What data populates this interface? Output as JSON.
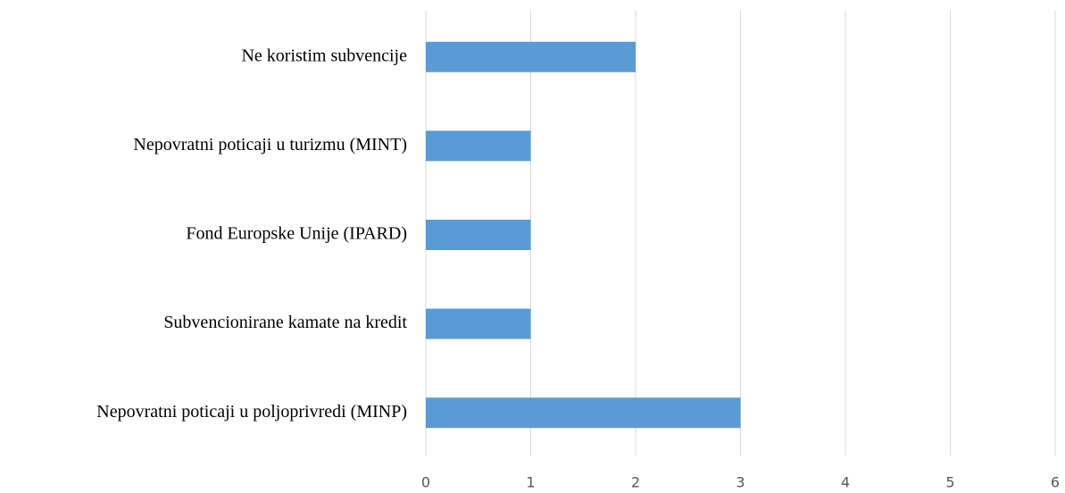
{
  "chart_data": {
    "type": "hbar",
    "categories": [
      "Ne koristim subvencije",
      "Nepovratni poticaji u turizmu (MINT)",
      "Fond Europske Unije (IPARD)",
      "Subvencionirane kamate na kredit",
      "Nepovratni poticaji u poljoprivredi (MINP)"
    ],
    "values": [
      2,
      1,
      1,
      1,
      3
    ],
    "color": "#5b9bd5",
    "xlim": [
      0,
      6
    ],
    "xticks": [
      0,
      1,
      2,
      3,
      4,
      5,
      6
    ],
    "grid": true
  }
}
